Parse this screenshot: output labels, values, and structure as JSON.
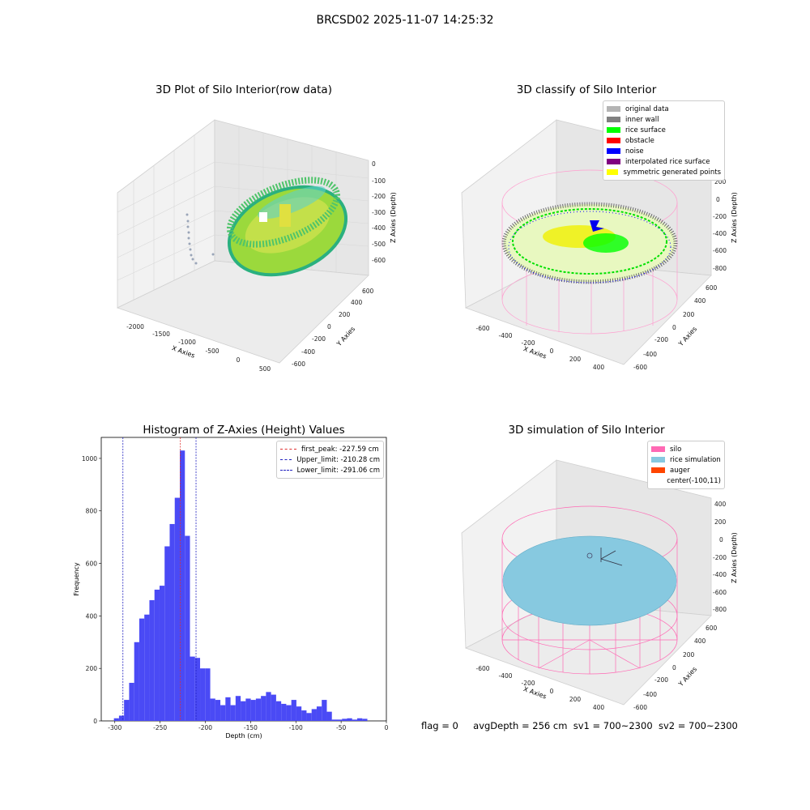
{
  "suptitle": "BRCSD02 2025-11-07 14:25:32",
  "footer": {
    "flag": "flag = 0",
    "avg_depth": "avgDepth = 256 cm",
    "sv1": "sv1 = 700~2300",
    "sv2": "sv2 = 700~2300"
  },
  "colors": {
    "histogram_bar": "#4a4af5",
    "first_peak": "#e03030",
    "limit": "#2020c0",
    "silo": "#ff69b4",
    "rice": "#87c9e0",
    "auger": "#ff4500"
  },
  "chart_data": [
    {
      "type": "scatter3d",
      "title": "3D Plot of Silo Interior(row data)",
      "xlabel": "X Axies",
      "ylabel": "Y Axies",
      "zlabel": "Z Axies (Depth)",
      "xticks": [
        "-2000",
        "-1500",
        "-1000",
        "-500",
        "0",
        "500"
      ],
      "yticks": [
        "-600",
        "-400",
        "-200",
        "0",
        "200",
        "400",
        "600"
      ],
      "zticks": [
        "0",
        "-100",
        "-200",
        "-300",
        "-400",
        "-500",
        "-600"
      ],
      "colormap": "viridis"
    },
    {
      "type": "scatter3d",
      "title": "3D classify of Silo Interior",
      "xlabel": "X Axies",
      "ylabel": "Y Axies",
      "zlabel": "Z Axies (Depth)",
      "xticks": [
        "-600",
        "-400",
        "-200",
        "0",
        "200",
        "400"
      ],
      "yticks": [
        "-600",
        "-400",
        "-200",
        "0",
        "200",
        "400",
        "600"
      ],
      "zticks": [
        "200",
        "0",
        "-200",
        "-400",
        "-600",
        "-800"
      ],
      "legend_position": "top-right",
      "legend": [
        {
          "label": "original data",
          "color": "#b4b4b4"
        },
        {
          "label": "inner wall",
          "color": "#808080"
        },
        {
          "label": "rice surface",
          "color": "#00ff00"
        },
        {
          "label": "obstacle",
          "color": "#ff0000"
        },
        {
          "label": "noise",
          "color": "#0000ff"
        },
        {
          "label": "interpolated rice surface",
          "color": "#800080"
        },
        {
          "label": "symmetric generated points",
          "color": "#ffff00"
        }
      ]
    },
    {
      "type": "bar",
      "title": "Histogram of Z-Axies (Height) Values",
      "xlabel": "Depth (cm)",
      "ylabel": "Frequency",
      "xlim": [
        -315,
        0
      ],
      "ylim": [
        0,
        1080
      ],
      "xticks": [
        -300,
        -250,
        -200,
        -150,
        -100,
        -50,
        0
      ],
      "yticks": [
        0,
        200,
        400,
        600,
        800,
        1000
      ],
      "bin_width": 5.6,
      "bin_start": -301,
      "values": [
        10,
        20,
        80,
        145,
        300,
        390,
        405,
        460,
        500,
        515,
        665,
        750,
        850,
        1030,
        705,
        245,
        240,
        200,
        200,
        85,
        80,
        60,
        90,
        60,
        95,
        75,
        85,
        80,
        85,
        95,
        110,
        100,
        75,
        65,
        60,
        80,
        55,
        40,
        30,
        45,
        55,
        80,
        35,
        5,
        5,
        8,
        10,
        5,
        10,
        8
      ],
      "lines": [
        {
          "label": "first_peak: -227.59 cm",
          "x": -227.59,
          "color": "#e03030"
        },
        {
          "label": "Upper_limit: -210.28 cm",
          "x": -210.28,
          "color": "#2020c0"
        },
        {
          "label": "Lower_limit: -291.06 cm",
          "x": -291.06,
          "color": "#2020c0"
        }
      ],
      "legend_position": "top-right"
    },
    {
      "type": "surface3d",
      "title": "3D simulation of Silo Interior",
      "xlabel": "X Axies",
      "ylabel": "Y Axies",
      "zlabel": "Z Axies (Depth)",
      "xticks": [
        "-600",
        "-400",
        "-200",
        "0",
        "200",
        "400"
      ],
      "yticks": [
        "-600",
        "-400",
        "-200",
        "0",
        "200",
        "400",
        "600"
      ],
      "zticks": [
        "400",
        "200",
        "0",
        "-200",
        "-400",
        "-600",
        "-800"
      ],
      "legend_position": "top-right",
      "legend": [
        {
          "label": "silo",
          "color": "#ff69b4"
        },
        {
          "label": "rice simulation",
          "color": "#87c9e0"
        },
        {
          "label": "auger",
          "color": "#ff4500"
        },
        {
          "label": "center(-100,11)",
          "color": ""
        }
      ]
    }
  ]
}
